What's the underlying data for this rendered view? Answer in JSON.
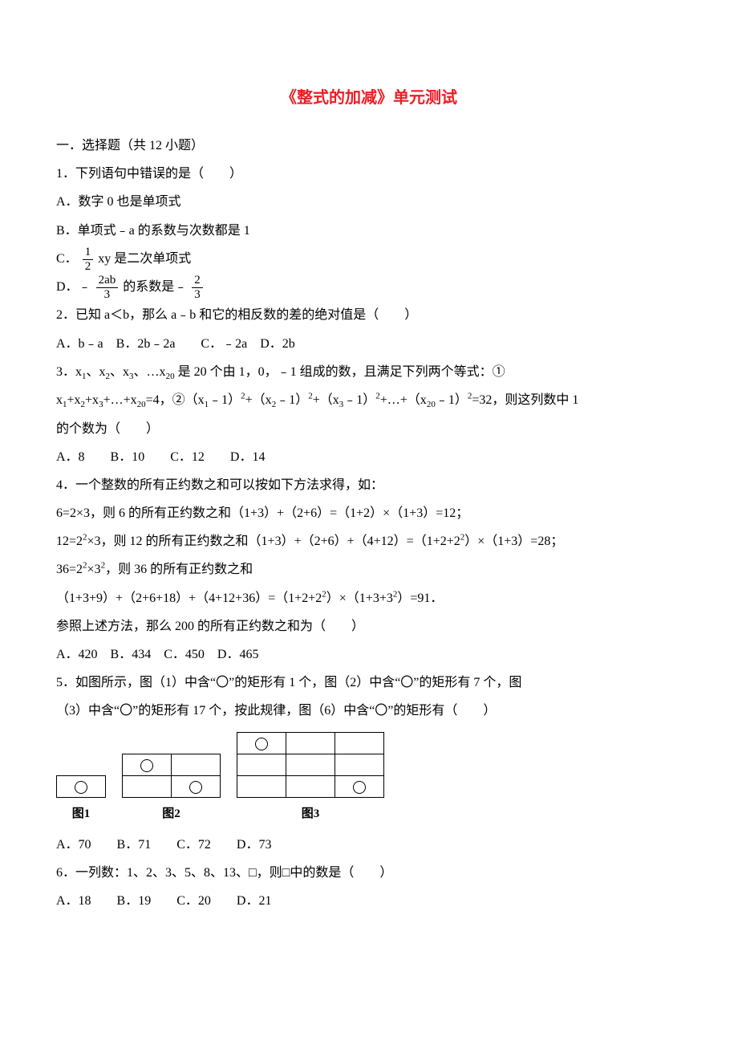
{
  "title": "《整式的加减》单元测试",
  "section1": "一．选择题（共 12 小题）",
  "q1": {
    "stem": "1．下列语句中错误的是（　　）",
    "a": "A．数字 0 也是单项式",
    "b": "B．单项式﹣a 的系数与次数都是 1",
    "c_pre": "C．",
    "c_frac_num": "1",
    "c_frac_den": "2",
    "c_post": " xy 是二次单项式",
    "d_pre": "D．﹣",
    "d_frac1_num": "2ab",
    "d_frac1_den": "3",
    "d_mid": "的系数是﹣",
    "d_frac2_num": "2",
    "d_frac2_den": "3"
  },
  "q2": {
    "stem": "2．已知 a＜b，那么 a﹣b 和它的相反数的差的绝对值是（　　）",
    "opts": "A．b﹣a　B．2b﹣2a　　C．﹣2a　D．2b"
  },
  "q3": {
    "line1a": "3．x",
    "s1": "1",
    "t1": "、x",
    "s2": "2",
    "t2": "、x",
    "s3": "3",
    "t3": "、…x",
    "s20": "20",
    "line1b": " 是 20 个由 1，0，﹣1 组成的数，且满足下列两个等式：①",
    "line2a": "x",
    "l2s1": "1",
    "l2p1": "+x",
    "l2s2": "2",
    "l2p2": "+x",
    "l2s3": "3",
    "l2p3": "+…+x",
    "l2s4": "20",
    "line2b": "=4，②（x",
    "l2s5": "1",
    "l2p4": "﹣1）",
    "l2sup1": "2",
    "l2p5": "+（x",
    "l2s6": "2",
    "l2p6": "﹣1）",
    "l2sup2": "2",
    "l2p7": "+（x",
    "l2s7": "3",
    "l2p8": "﹣1）",
    "l2sup3": "2",
    "l2p9": "+…+（x",
    "l2s8": "20",
    "l2p10": "﹣1）",
    "l2sup4": "2",
    "l2p11": "=32，则这列数中 1",
    "line3": "的个数为（　　）",
    "opts": "A．8　　B．10　　C．12　　D．14"
  },
  "q4": {
    "stem": "4．一个整数的所有正约数之和可以按如下方法求得，如：",
    "l1": "6=2×3，则 6 的所有正约数之和（1+3）+（2+6）=（1+2）×（1+3）=12；",
    "l2a": "12=2",
    "l2sup": "2",
    "l2b": "×3，则 12 的所有正约数之和（1+3）+（2+6）+（4+12）=（1+2+2",
    "l2sup2": "2",
    "l2c": "）×（1+3）=28；",
    "l3a": "36=2",
    "l3sup1": "2",
    "l3b": "×3",
    "l3sup2": "2",
    "l3c": "，则 36 的所有正约数之和",
    "l4a": "（1+3+9）+（2+6+18）+（4+12+36）=（1+2+2",
    "l4sup1": "2",
    "l4b": "）×（1+3+3",
    "l4sup2": "2",
    "l4c": "）=91．",
    "l5": "参照上述方法，那么 200 的所有正约数之和为（　　）",
    "opts": "A．420　B．434　C．450　D．465"
  },
  "q5": {
    "l1": "5．如图所示，图（1）中含“〇”的矩形有 1 个，图（2）中含“〇”的矩形有 7 个，图",
    "l2": "（3）中含“〇”的矩形有 17 个，按此规律，图（6）中含“〇”的矩形有（　　）",
    "figlabels": {
      "f1": "图1",
      "f2": "图2",
      "f3": "图3"
    },
    "opts": "A．70　　B．71　　C．72　　D．73"
  },
  "q6": {
    "stem": "6．一列数：1、2、3、5、8、13、□，则□中的数是（　　）",
    "opts": "A．18　　B．19　　C．20　　D．21"
  }
}
